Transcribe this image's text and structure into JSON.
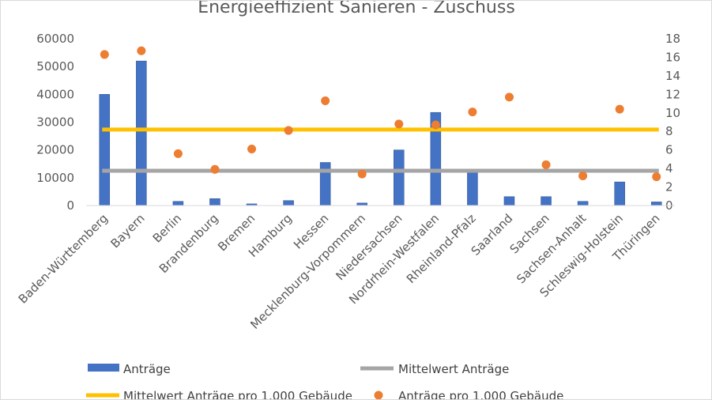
{
  "chart_data": {
    "type": "bar",
    "title": "Energieeffizient Sanieren - Zuschuss",
    "categories": [
      "Baden-Württemberg",
      "Bayern",
      "Berlin",
      "Brandenburg",
      "Bremen",
      "Hamburg",
      "Hessen",
      "Mecklenburg-Vorpommern",
      "Niedersachsen",
      "Nordrhein-Westfalen",
      "Rheinland-Pfalz",
      "Saarland",
      "Sachsen",
      "Sachsen-Anhalt",
      "Schleswig-Holstein",
      "Thüringen"
    ],
    "left_axis": {
      "ylim": [
        0,
        60000
      ],
      "ticks": [
        "0",
        "10000",
        "20000",
        "30000",
        "40000",
        "50000",
        "60000"
      ]
    },
    "right_axis": {
      "ylim": [
        0,
        18
      ],
      "ticks": [
        "0",
        "2",
        "4",
        "6",
        "8",
        "10",
        "12",
        "14",
        "16",
        "18"
      ]
    },
    "grid": false,
    "legend_position": "bottom",
    "series": [
      {
        "name": "Anträge",
        "type": "bar",
        "axis": "left",
        "color": "#4472c4",
        "values": [
          40000,
          52000,
          1500,
          2500,
          600,
          1800,
          15500,
          900,
          20000,
          33500,
          12000,
          3200,
          3200,
          1500,
          8500,
          1300
        ]
      },
      {
        "name": "Mittelwert Anträge",
        "type": "line",
        "axis": "left",
        "color": "#a5a5a5",
        "values": [
          12500,
          12500,
          12500,
          12500,
          12500,
          12500,
          12500,
          12500,
          12500,
          12500,
          12500,
          12500,
          12500,
          12500,
          12500,
          12500
        ]
      },
      {
        "name": "Mittelwert Anträge pro 1.000 Gebäude",
        "type": "line",
        "axis": "right",
        "color": "#ffc000",
        "values": [
          8.2,
          8.2,
          8.2,
          8.2,
          8.2,
          8.2,
          8.2,
          8.2,
          8.2,
          8.2,
          8.2,
          8.2,
          8.2,
          8.2,
          8.2,
          8.2
        ]
      },
      {
        "name": "Anträge pro 1.000 Gebäude",
        "type": "scatter",
        "axis": "right",
        "color": "#ed7d31",
        "values": [
          16.3,
          16.7,
          5.6,
          3.9,
          6.1,
          8.1,
          11.3,
          3.4,
          8.8,
          8.7,
          10.1,
          11.7,
          4.4,
          3.2,
          10.4,
          3.1
        ]
      }
    ]
  }
}
